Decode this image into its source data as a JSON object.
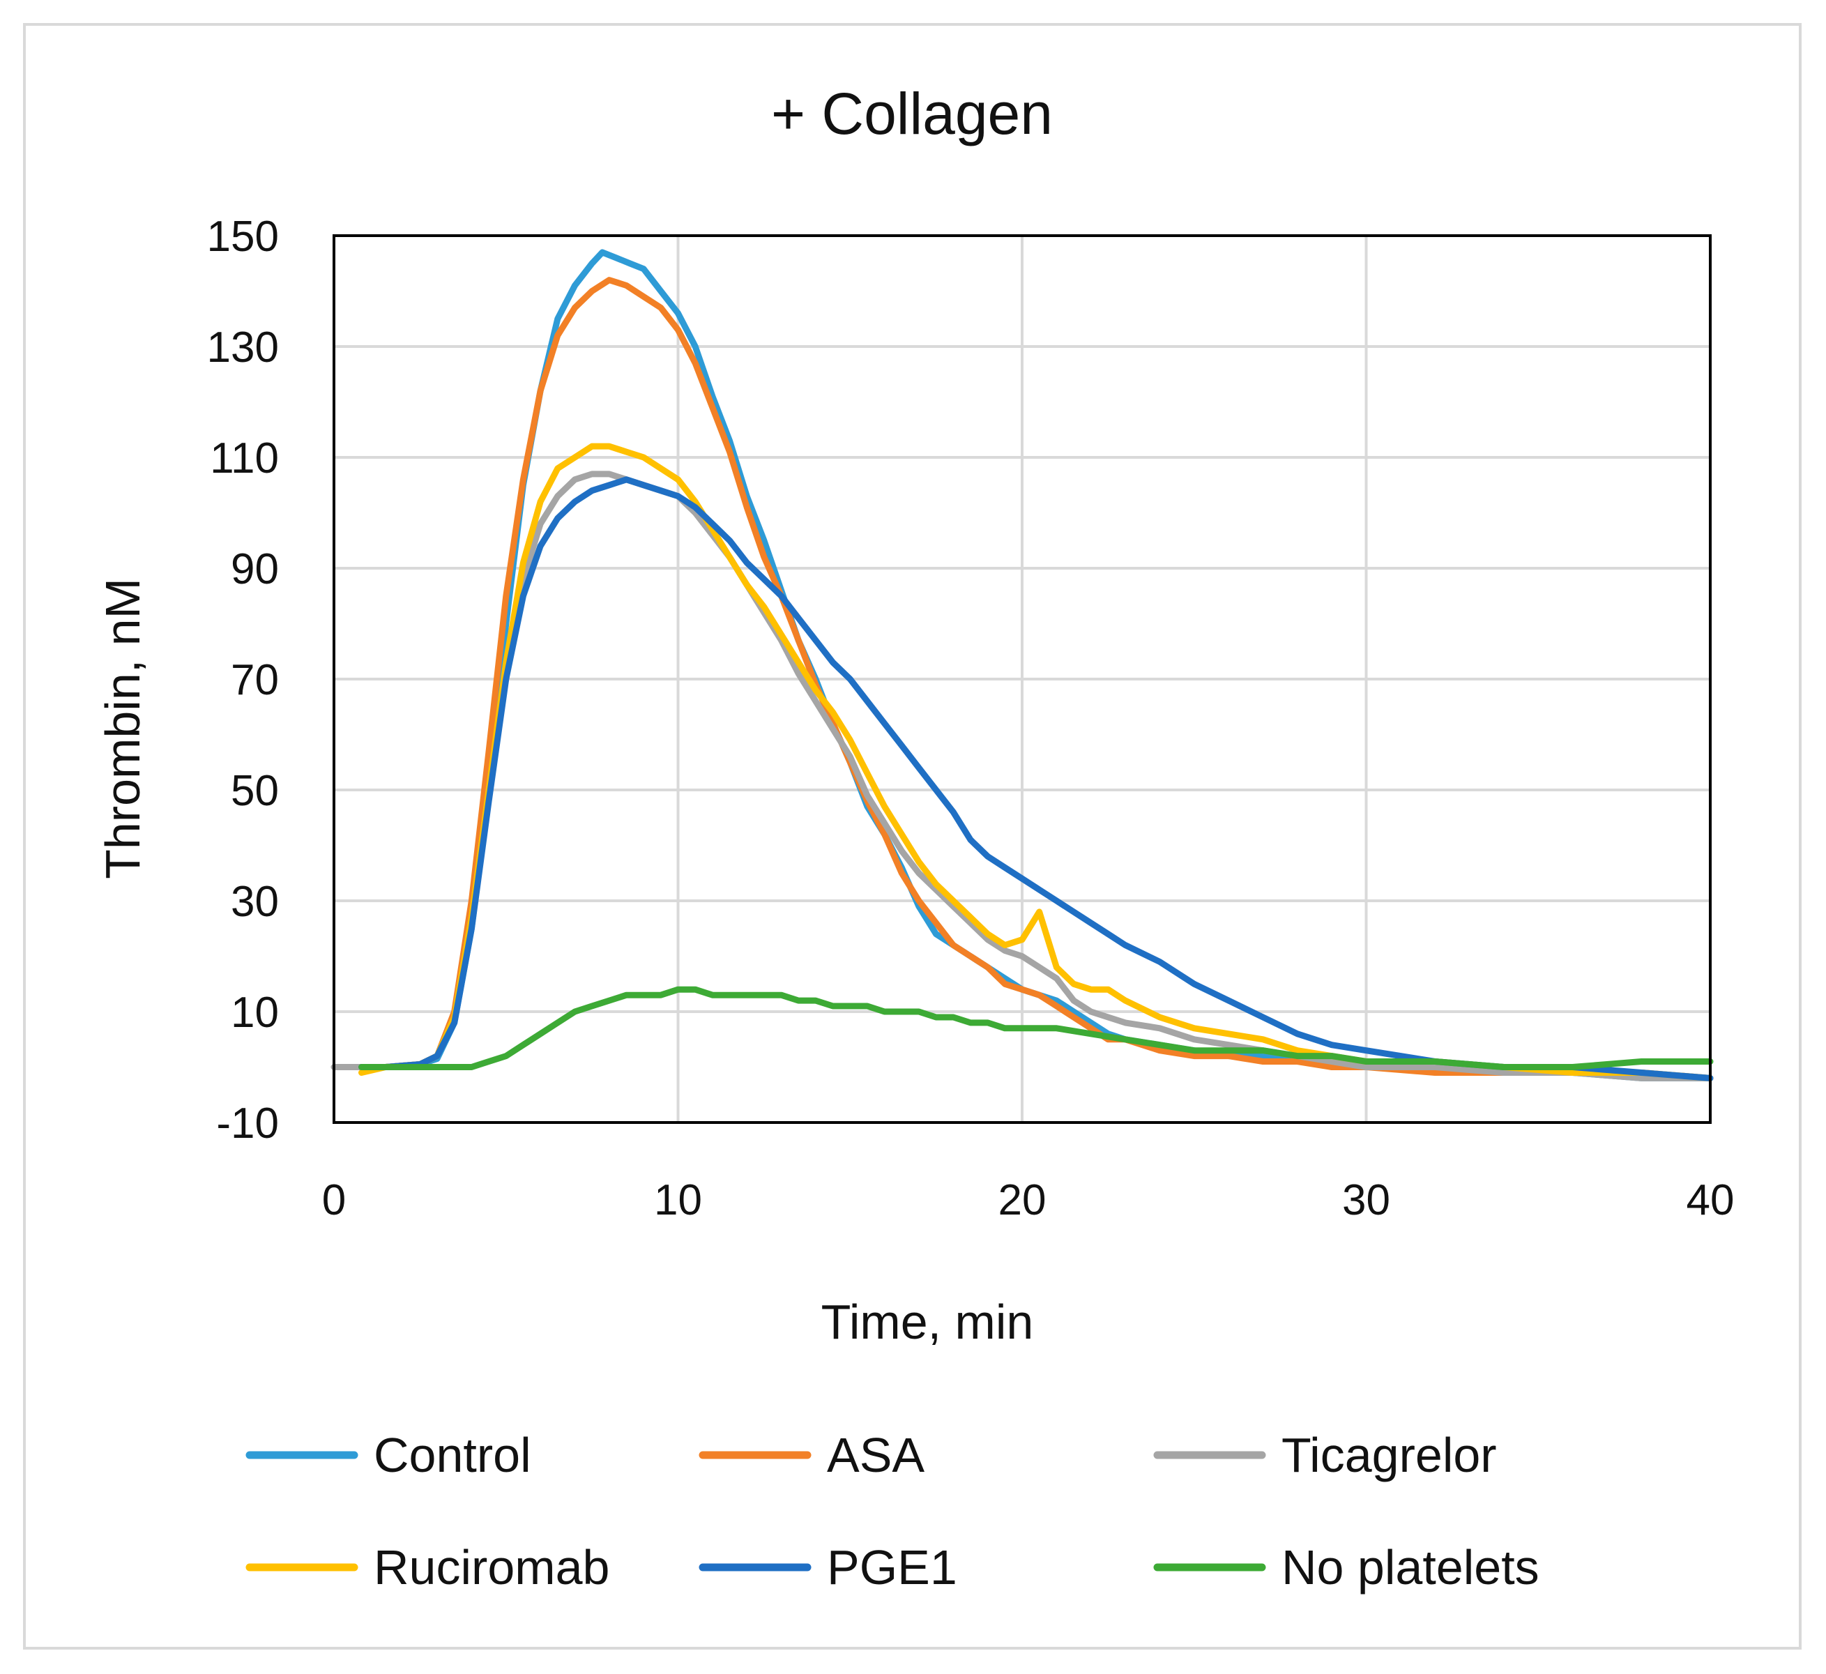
{
  "chart_data": {
    "type": "line",
    "title": "+ Collagen",
    "xlabel": "Time, min",
    "ylabel": "Thrombin, nM",
    "xlim": [
      0,
      40
    ],
    "ylim": [
      -10,
      150
    ],
    "xticks": [
      0,
      10,
      20,
      30,
      40
    ],
    "yticks": [
      -10,
      10,
      30,
      50,
      70,
      90,
      110,
      130,
      150
    ],
    "grid": true,
    "legend": "bottom",
    "series": [
      {
        "name": "Control",
        "color": "#2E9BD6",
        "points": [
          [
            0.8,
            0
          ],
          [
            1.5,
            0
          ],
          [
            2.5,
            0.5
          ],
          [
            3,
            1.5
          ],
          [
            3.5,
            8
          ],
          [
            4,
            25
          ],
          [
            4.5,
            50
          ],
          [
            5,
            80
          ],
          [
            5.5,
            105
          ],
          [
            6,
            122
          ],
          [
            6.5,
            135
          ],
          [
            7,
            141
          ],
          [
            7.5,
            145
          ],
          [
            7.8,
            147
          ],
          [
            8.2,
            146
          ],
          [
            8.6,
            145
          ],
          [
            9,
            144
          ],
          [
            9.5,
            140
          ],
          [
            10,
            136
          ],
          [
            10.5,
            130
          ],
          [
            11,
            121
          ],
          [
            11.5,
            113
          ],
          [
            12,
            103
          ],
          [
            12.5,
            95
          ],
          [
            13,
            86
          ],
          [
            13.5,
            77
          ],
          [
            14,
            70
          ],
          [
            14.5,
            62
          ],
          [
            15,
            55
          ],
          [
            15.5,
            47
          ],
          [
            16,
            42
          ],
          [
            16.5,
            36
          ],
          [
            17,
            29
          ],
          [
            17.5,
            24
          ],
          [
            18,
            22
          ],
          [
            18.5,
            20
          ],
          [
            19,
            18
          ],
          [
            19.5,
            16
          ],
          [
            20,
            14
          ],
          [
            20.5,
            13
          ],
          [
            21,
            12
          ],
          [
            21.5,
            10
          ],
          [
            22,
            8
          ],
          [
            22.5,
            6
          ],
          [
            23,
            5
          ],
          [
            24,
            4
          ],
          [
            25,
            3
          ],
          [
            26,
            2
          ],
          [
            27,
            2
          ],
          [
            28,
            1
          ],
          [
            29,
            1
          ],
          [
            30,
            0
          ],
          [
            32,
            0
          ],
          [
            34,
            -1
          ],
          [
            36,
            -1
          ],
          [
            38,
            -2
          ],
          [
            40,
            -2
          ]
        ]
      },
      {
        "name": "ASA",
        "color": "#F28026",
        "points": [
          [
            0.8,
            0
          ],
          [
            1.5,
            0
          ],
          [
            2.5,
            0.5
          ],
          [
            3,
            2
          ],
          [
            3.5,
            10
          ],
          [
            4,
            30
          ],
          [
            4.5,
            57
          ],
          [
            5,
            85
          ],
          [
            5.5,
            106
          ],
          [
            6,
            122
          ],
          [
            6.5,
            132
          ],
          [
            7,
            137
          ],
          [
            7.5,
            140
          ],
          [
            8,
            142
          ],
          [
            8.5,
            141
          ],
          [
            9,
            139
          ],
          [
            9.5,
            137
          ],
          [
            10,
            133
          ],
          [
            10.5,
            127
          ],
          [
            11,
            119
          ],
          [
            11.5,
            111
          ],
          [
            12,
            101
          ],
          [
            12.5,
            92
          ],
          [
            13,
            85
          ],
          [
            13.5,
            77
          ],
          [
            14,
            69
          ],
          [
            14.5,
            62
          ],
          [
            15,
            55
          ],
          [
            15.5,
            48
          ],
          [
            16,
            42
          ],
          [
            16.5,
            35
          ],
          [
            17,
            30
          ],
          [
            17.5,
            26
          ],
          [
            18,
            22
          ],
          [
            18.5,
            20
          ],
          [
            19,
            18
          ],
          [
            19.5,
            15
          ],
          [
            20,
            14
          ],
          [
            20.5,
            13
          ],
          [
            21,
            11
          ],
          [
            21.5,
            9
          ],
          [
            22,
            7
          ],
          [
            22.5,
            5
          ],
          [
            23,
            5
          ],
          [
            24,
            3
          ],
          [
            25,
            2
          ],
          [
            26,
            2
          ],
          [
            27,
            1
          ],
          [
            28,
            1
          ],
          [
            29,
            0
          ],
          [
            30,
            0
          ],
          [
            32,
            -1
          ],
          [
            34,
            -1
          ],
          [
            36,
            -1
          ],
          [
            38,
            -1
          ],
          [
            40,
            -2
          ]
        ]
      },
      {
        "name": "Ticagrelor",
        "color": "#A5A5A5",
        "points": [
          [
            0,
            0
          ],
          [
            0.8,
            0
          ],
          [
            1.5,
            0
          ],
          [
            2.5,
            0.5
          ],
          [
            3,
            2
          ],
          [
            3.5,
            9
          ],
          [
            4,
            27
          ],
          [
            4.5,
            50
          ],
          [
            5,
            72
          ],
          [
            5.5,
            88
          ],
          [
            6,
            98
          ],
          [
            6.5,
            103
          ],
          [
            7,
            106
          ],
          [
            7.5,
            107
          ],
          [
            8,
            107
          ],
          [
            8.5,
            106
          ],
          [
            9,
            105
          ],
          [
            9.5,
            104
          ],
          [
            10,
            103
          ],
          [
            10.5,
            100
          ],
          [
            11,
            96
          ],
          [
            11.5,
            92
          ],
          [
            12,
            87
          ],
          [
            12.5,
            82
          ],
          [
            13,
            77
          ],
          [
            13.5,
            71
          ],
          [
            14,
            66
          ],
          [
            14.5,
            61
          ],
          [
            15,
            56
          ],
          [
            15.5,
            49
          ],
          [
            16,
            44
          ],
          [
            16.5,
            39
          ],
          [
            17,
            35
          ],
          [
            17.5,
            32
          ],
          [
            18,
            29
          ],
          [
            18.5,
            26
          ],
          [
            19,
            23
          ],
          [
            19.5,
            21
          ],
          [
            20,
            20
          ],
          [
            20.5,
            18
          ],
          [
            21,
            16
          ],
          [
            21.5,
            12
          ],
          [
            22,
            10
          ],
          [
            22.5,
            9
          ],
          [
            23,
            8
          ],
          [
            24,
            7
          ],
          [
            25,
            5
          ],
          [
            26,
            4
          ],
          [
            27,
            3
          ],
          [
            28,
            2
          ],
          [
            29,
            1
          ],
          [
            30,
            0
          ],
          [
            32,
            0
          ],
          [
            34,
            -1
          ],
          [
            36,
            -1
          ],
          [
            38,
            -2
          ],
          [
            40,
            -2
          ]
        ]
      },
      {
        "name": "Ruciromab",
        "color": "#FFC000",
        "points": [
          [
            0.8,
            -1
          ],
          [
            1.5,
            0
          ],
          [
            2.5,
            0.5
          ],
          [
            3,
            2
          ],
          [
            3.5,
            9
          ],
          [
            4,
            27
          ],
          [
            4.5,
            50
          ],
          [
            5,
            73
          ],
          [
            5.5,
            91
          ],
          [
            6,
            102
          ],
          [
            6.5,
            108
          ],
          [
            7,
            110
          ],
          [
            7.5,
            112
          ],
          [
            8,
            112
          ],
          [
            8.5,
            111
          ],
          [
            9,
            110
          ],
          [
            9.5,
            108
          ],
          [
            10,
            106
          ],
          [
            10.5,
            102
          ],
          [
            11,
            97
          ],
          [
            11.5,
            92
          ],
          [
            12,
            87
          ],
          [
            12.5,
            83
          ],
          [
            13,
            78
          ],
          [
            13.5,
            73
          ],
          [
            14,
            68
          ],
          [
            14.5,
            64
          ],
          [
            15,
            59
          ],
          [
            15.5,
            53
          ],
          [
            16,
            47
          ],
          [
            16.5,
            42
          ],
          [
            17,
            37
          ],
          [
            17.5,
            33
          ],
          [
            18,
            30
          ],
          [
            18.5,
            27
          ],
          [
            19,
            24
          ],
          [
            19.5,
            22
          ],
          [
            20,
            23
          ],
          [
            20.5,
            28
          ],
          [
            21,
            18
          ],
          [
            21.5,
            15
          ],
          [
            22,
            14
          ],
          [
            22.5,
            14
          ],
          [
            23,
            12
          ],
          [
            24,
            9
          ],
          [
            25,
            7
          ],
          [
            26,
            6
          ],
          [
            27,
            5
          ],
          [
            28,
            3
          ],
          [
            29,
            2
          ],
          [
            30,
            1
          ],
          [
            32,
            1
          ],
          [
            34,
            0
          ],
          [
            36,
            -1
          ],
          [
            38,
            -1
          ],
          [
            40,
            -2
          ]
        ]
      },
      {
        "name": "PGE1",
        "color": "#1F6FC4",
        "points": [
          [
            0.8,
            0
          ],
          [
            1.5,
            0
          ],
          [
            2.5,
            0.5
          ],
          [
            3,
            2
          ],
          [
            3.5,
            8
          ],
          [
            4,
            25
          ],
          [
            4.5,
            48
          ],
          [
            5,
            70
          ],
          [
            5.5,
            85
          ],
          [
            6,
            94
          ],
          [
            6.5,
            99
          ],
          [
            7,
            102
          ],
          [
            7.5,
            104
          ],
          [
            8,
            105
          ],
          [
            8.5,
            106
          ],
          [
            9,
            105
          ],
          [
            9.5,
            104
          ],
          [
            10,
            103
          ],
          [
            10.5,
            101
          ],
          [
            11,
            98
          ],
          [
            11.5,
            95
          ],
          [
            12,
            91
          ],
          [
            12.5,
            88
          ],
          [
            13,
            85
          ],
          [
            13.5,
            81
          ],
          [
            14,
            77
          ],
          [
            14.5,
            73
          ],
          [
            15,
            70
          ],
          [
            15.5,
            66
          ],
          [
            16,
            62
          ],
          [
            16.5,
            58
          ],
          [
            17,
            54
          ],
          [
            17.5,
            50
          ],
          [
            18,
            46
          ],
          [
            18.5,
            41
          ],
          [
            19,
            38
          ],
          [
            19.5,
            36
          ],
          [
            20,
            34
          ],
          [
            20.5,
            32
          ],
          [
            21,
            30
          ],
          [
            21.5,
            28
          ],
          [
            22,
            26
          ],
          [
            22.5,
            24
          ],
          [
            23,
            22
          ],
          [
            24,
            19
          ],
          [
            25,
            15
          ],
          [
            26,
            12
          ],
          [
            27,
            9
          ],
          [
            28,
            6
          ],
          [
            29,
            4
          ],
          [
            30,
            3
          ],
          [
            32,
            1
          ],
          [
            34,
            0
          ],
          [
            36,
            0
          ],
          [
            38,
            -1
          ],
          [
            40,
            -2
          ]
        ]
      },
      {
        "name": "No platelets",
        "color": "#3DAA35",
        "points": [
          [
            0.8,
            0
          ],
          [
            1.5,
            0
          ],
          [
            2,
            0
          ],
          [
            3,
            0
          ],
          [
            3.5,
            0
          ],
          [
            4,
            0
          ],
          [
            4.5,
            1
          ],
          [
            5,
            2
          ],
          [
            5.5,
            4
          ],
          [
            6,
            6
          ],
          [
            6.5,
            8
          ],
          [
            7,
            10
          ],
          [
            7.5,
            11
          ],
          [
            8,
            12
          ],
          [
            8.5,
            13
          ],
          [
            9,
            13
          ],
          [
            9.5,
            13
          ],
          [
            10,
            14
          ],
          [
            10.5,
            14
          ],
          [
            11,
            13
          ],
          [
            11.5,
            13
          ],
          [
            12,
            13
          ],
          [
            12.5,
            13
          ],
          [
            13,
            13
          ],
          [
            13.5,
            12
          ],
          [
            14,
            12
          ],
          [
            14.5,
            11
          ],
          [
            15,
            11
          ],
          [
            15.5,
            11
          ],
          [
            16,
            10
          ],
          [
            16.5,
            10
          ],
          [
            17,
            10
          ],
          [
            17.5,
            9
          ],
          [
            18,
            9
          ],
          [
            18.5,
            8
          ],
          [
            19,
            8
          ],
          [
            19.5,
            7
          ],
          [
            20,
            7
          ],
          [
            21,
            7
          ],
          [
            22,
            6
          ],
          [
            23,
            5
          ],
          [
            24,
            4
          ],
          [
            25,
            3
          ],
          [
            26,
            3
          ],
          [
            27,
            3
          ],
          [
            28,
            2
          ],
          [
            29,
            2
          ],
          [
            30,
            1
          ],
          [
            32,
            1
          ],
          [
            34,
            0
          ],
          [
            36,
            0
          ],
          [
            38,
            1
          ],
          [
            40,
            1
          ]
        ]
      }
    ]
  }
}
